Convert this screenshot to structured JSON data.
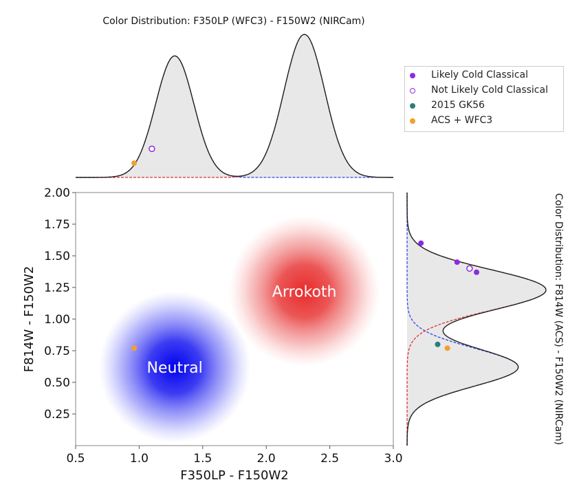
{
  "chart_data": [
    {
      "id": "top_marginal",
      "type": "area",
      "title": "Color Distribution: F350LP (WFC3) - F150W2 (NIRCam)",
      "xlim": [
        0.5,
        3.0
      ],
      "components": [
        {
          "name": "neutral",
          "color": "#3344ee",
          "mean": 1.28,
          "sigma": 0.15,
          "amplitude": 0.85
        },
        {
          "name": "red",
          "color": "#e03030",
          "mean": 2.3,
          "sigma": 0.16,
          "amplitude": 1.0
        }
      ],
      "fill_color": "#e8e8e8",
      "points": [
        {
          "category": "Not Likely Cold Classical",
          "x": 1.1,
          "level": 0.2
        },
        {
          "category": "ACS + WFC3",
          "x": 0.96,
          "level": 0.1
        }
      ]
    },
    {
      "id": "main_scatter",
      "type": "scatter",
      "xlabel": "F350LP - F150W2",
      "ylabel": "F814W - F150W2",
      "xlim": [
        0.5,
        3.0
      ],
      "ylim": [
        0.0,
        2.0
      ],
      "xticks": [
        "0.5",
        "1.0",
        "1.5",
        "2.0",
        "2.5",
        "3.0"
      ],
      "yticks": [
        "0.25",
        "0.50",
        "0.75",
        "1.00",
        "1.25",
        "1.50",
        "1.75",
        "2.00"
      ],
      "regions": [
        {
          "label": "Neutral",
          "x": 1.28,
          "y": 0.62,
          "color": "#0000ee"
        },
        {
          "label": "Arrokoth",
          "x": 2.3,
          "y": 1.22,
          "color": "#e83030"
        }
      ],
      "points": [
        {
          "category": "ACS + WFC3",
          "x": 0.96,
          "y": 0.77
        }
      ]
    },
    {
      "id": "right_marginal",
      "type": "area",
      "title": "Color Distribution: F814W (ACS) - F150W2 (NIRCam)",
      "ylim": [
        0.0,
        2.0
      ],
      "components": [
        {
          "name": "neutral",
          "color": "#3344ee",
          "mean": 0.62,
          "sigma": 0.15,
          "amplitude": 0.8
        },
        {
          "name": "red",
          "color": "#e03030",
          "mean": 1.23,
          "sigma": 0.16,
          "amplitude": 1.0
        }
      ],
      "fill_color": "#e8e8e8",
      "points": [
        {
          "category": "Likely Cold Classical",
          "y": 1.6,
          "level": 0.1
        },
        {
          "category": "Likely Cold Classical",
          "y": 1.45,
          "level": 0.36
        },
        {
          "category": "Not Likely Cold Classical",
          "y": 1.4,
          "level": 0.45
        },
        {
          "category": "Likely Cold Classical",
          "y": 1.37,
          "level": 0.5
        },
        {
          "category": "2015 GK56",
          "y": 0.8,
          "level": 0.22
        },
        {
          "category": "ACS + WFC3",
          "y": 0.77,
          "level": 0.29
        }
      ]
    }
  ],
  "legend": {
    "placement": "top-right",
    "items": [
      {
        "label": "Likely Cold Classical",
        "color": "#8a2be2",
        "filled": true
      },
      {
        "label": "Not Likely Cold Classical",
        "color": "#8a2be2",
        "filled": false
      },
      {
        "label": "2015 GK56",
        "color": "#2e7d7a",
        "filled": true
      },
      {
        "label": "ACS + WFC3",
        "color": "#f0a030",
        "filled": true
      }
    ]
  },
  "colors": {
    "Likely Cold Classical": "#8a2be2",
    "Not Likely Cold Classical": "#8a2be2",
    "2015 GK56": "#2e7d7a",
    "ACS + WFC3": "#f0a030"
  }
}
